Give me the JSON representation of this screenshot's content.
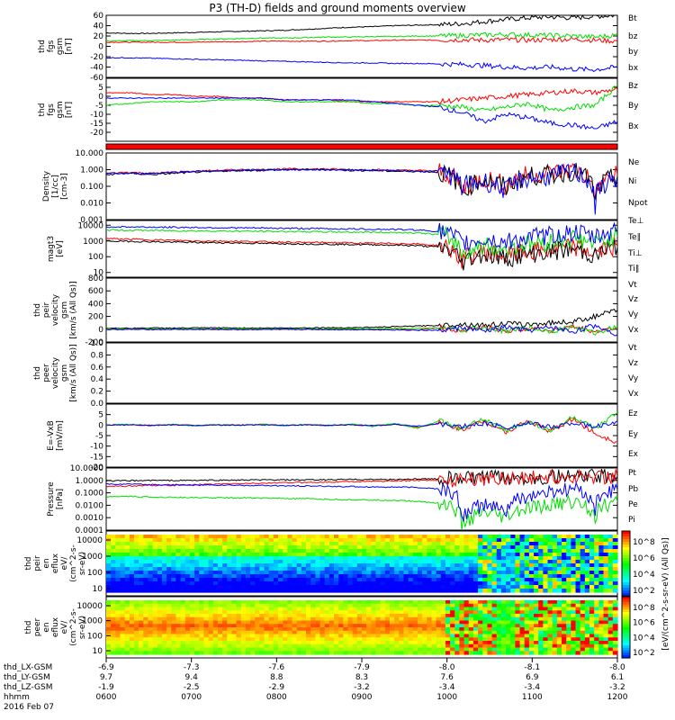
{
  "title": "P3 (TH-D) fields and ground moments overview",
  "colors": {
    "black": "#000000",
    "red": "#ff0000",
    "green": "#00dd00",
    "blue": "#0000ff"
  },
  "chart_data": [
    {
      "type": "line",
      "id": "fgs_gsm",
      "ylabel": [
        "thd",
        "fgs",
        "gsm",
        "[nT]"
      ],
      "ylim": [
        -60,
        60
      ],
      "yticks": [
        "60",
        "40",
        "20",
        "0",
        "-20",
        "-40",
        "-60"
      ],
      "ytick_vals": [
        60,
        40,
        20,
        0,
        -20,
        -40,
        -60
      ],
      "legend": [
        "Bt",
        "bz",
        "by",
        "bx"
      ],
      "series": [
        {
          "name": "Bt",
          "color": "black",
          "values": [
            26,
            25,
            25,
            26,
            27,
            28,
            29,
            30,
            31,
            33,
            35,
            37,
            38,
            40,
            41,
            42,
            44,
            48,
            52,
            55,
            57,
            55,
            58,
            60
          ]
        },
        {
          "name": "bz",
          "color": "red",
          "values": [
            8,
            8,
            8,
            8,
            8,
            9,
            9,
            10,
            10,
            10,
            10,
            11,
            11,
            12,
            12,
            12,
            13,
            12,
            13,
            12,
            13,
            14,
            12,
            10
          ]
        },
        {
          "name": "by",
          "color": "green",
          "values": [
            10,
            11,
            11,
            12,
            13,
            14,
            15,
            16,
            16,
            17,
            18,
            18,
            19,
            19,
            20,
            20,
            21,
            22,
            23,
            22,
            21,
            20,
            18,
            22
          ]
        },
        {
          "name": "bx",
          "color": "blue",
          "values": [
            -22,
            -22,
            -23,
            -24,
            -25,
            -26,
            -27,
            -28,
            -29,
            -30,
            -31,
            -32,
            -32,
            -33,
            -33,
            -34,
            -35,
            -37,
            -40,
            -42,
            -40,
            -44,
            -45,
            -40
          ]
        }
      ]
    },
    {
      "type": "line",
      "id": "fgs_gse",
      "ylabel": [
        "thd",
        "fgs",
        "gsm",
        "[nT]"
      ],
      "ylim": [
        -25,
        10
      ],
      "yticks": [
        "5",
        "0",
        "-5",
        "-10",
        "-15",
        "-20"
      ],
      "ytick_vals": [
        5,
        0,
        -5,
        -10,
        -15,
        -20
      ],
      "legend": [
        "Bz",
        "By",
        "Bx"
      ],
      "series": [
        {
          "name": "Bz",
          "color": "red",
          "values": [
            2,
            2,
            1,
            1,
            0,
            0,
            -1,
            -1,
            -2,
            -2,
            -2,
            -3,
            -3,
            -3,
            -3,
            -3,
            -2,
            -1,
            0,
            1,
            2,
            3,
            2,
            4
          ]
        },
        {
          "name": "By",
          "color": "green",
          "values": [
            -5,
            -4,
            -3,
            -3,
            -3,
            -2,
            -2,
            -2,
            -3,
            -3,
            -3,
            -3,
            -4,
            -4,
            -5,
            -5,
            -6,
            -8,
            -6,
            -4,
            -8,
            -6,
            -5,
            6
          ]
        },
        {
          "name": "Bx",
          "color": "blue",
          "values": [
            -1,
            -1,
            -1,
            -1,
            -1,
            -1,
            -1,
            -1,
            -2,
            -2,
            -2,
            -2,
            -3,
            -4,
            -5,
            -6,
            -9,
            -14,
            -10,
            -12,
            -15,
            -16,
            -18,
            -14
          ]
        }
      ]
    },
    {
      "type": "line",
      "id": "density",
      "log": true,
      "ylabel": [
        "Density",
        "[1/cc]",
        "[cm-3]"
      ],
      "ylim": [
        0.001,
        10
      ],
      "yticks": [
        "10.000",
        "1.000",
        "0.100",
        "0.010",
        "0.001"
      ],
      "ytick_vals": [
        10,
        1,
        0.1,
        0.01,
        0.001
      ],
      "legend": [
        "Ne",
        "Ni",
        "Npot"
      ],
      "series": [
        {
          "name": "Ne",
          "color": "red",
          "values": [
            0.6,
            0.7,
            0.6,
            0.7,
            0.8,
            0.9,
            1,
            1,
            1.1,
            1.1,
            1.1,
            1,
            1,
            0.9,
            0.9,
            0.8,
            0.05,
            0.3,
            0.1,
            0.5,
            0.6,
            1,
            0.01,
            0.5
          ]
        },
        {
          "name": "Ni",
          "color": "black",
          "values": [
            0.5,
            0.6,
            0.5,
            0.6,
            0.7,
            0.8,
            0.9,
            0.9,
            1,
            1,
            1,
            0.9,
            0.9,
            0.8,
            0.8,
            0.7,
            0.04,
            0.25,
            0.08,
            0.4,
            0.5,
            0.8,
            0.008,
            0.4
          ]
        },
        {
          "name": "Npot",
          "color": "blue",
          "values": [
            0.6,
            0.6,
            0.6,
            0.7,
            0.8,
            0.8,
            0.9,
            1,
            1,
            1,
            1,
            1,
            0.9,
            0.9,
            0.8,
            0.8,
            0.1,
            0.2,
            0.05,
            0.3,
            0.4,
            0.7,
            0.005,
            0.3
          ]
        }
      ]
    },
    {
      "type": "line",
      "id": "magt3",
      "log": true,
      "ylabel": [
        "magt3",
        "[eV]"
      ],
      "ylim": [
        5,
        20000
      ],
      "yticks": [
        "10000",
        "1000",
        "100",
        "10"
      ],
      "ytick_vals": [
        10000,
        1000,
        100,
        10
      ],
      "legend": [
        "Te⊥",
        "Te∥",
        "Ti⊥",
        "Ti∥"
      ],
      "series": [
        {
          "name": "Te⊥",
          "color": "red",
          "values": [
            1400,
            1300,
            1200,
            1100,
            1000,
            1000,
            950,
            900,
            850,
            800,
            800,
            750,
            700,
            700,
            650,
            500,
            60,
            200,
            100,
            200,
            250,
            400,
            150,
            500
          ]
        },
        {
          "name": "Te∥",
          "color": "black",
          "values": [
            1000,
            950,
            900,
            850,
            800,
            780,
            750,
            700,
            680,
            650,
            620,
            600,
            580,
            550,
            500,
            400,
            40,
            150,
            70,
            150,
            200,
            300,
            100,
            400
          ]
        },
        {
          "name": "Ti⊥",
          "color": "green",
          "values": [
            5000,
            4800,
            4700,
            4500,
            4400,
            4300,
            4200,
            4100,
            4000,
            3900,
            3800,
            3700,
            3600,
            3500,
            3300,
            2500,
            150,
            500,
            300,
            700,
            900,
            1500,
            600,
            2000
          ]
        },
        {
          "name": "Ti∥",
          "color": "blue",
          "values": [
            8000,
            7800,
            7600,
            7400,
            7200,
            7000,
            6800,
            6600,
            6400,
            6200,
            6000,
            5800,
            5600,
            5400,
            5000,
            4000,
            600,
            1200,
            800,
            1600,
            2200,
            3500,
            1500,
            5000
          ]
        }
      ]
    },
    {
      "type": "line",
      "id": "peir_velocity",
      "ylabel": [
        "thd",
        "peir",
        "velocity",
        "gsm",
        "[km/s (All Qs)]"
      ],
      "ylim": [
        -200,
        800
      ],
      "yticks": [
        "800",
        "600",
        "400",
        "200",
        "0",
        "-200"
      ],
      "ytick_vals": [
        800,
        600,
        400,
        200,
        0,
        -200
      ],
      "legend": [
        "Vt",
        "Vz",
        "Vy",
        "Vx"
      ],
      "series": [
        {
          "name": "Vt",
          "color": "black",
          "values": [
            20,
            15,
            20,
            18,
            20,
            22,
            20,
            18,
            20,
            22,
            25,
            25,
            30,
            40,
            50,
            60,
            80,
            60,
            90,
            70,
            100,
            120,
            200,
            300
          ]
        },
        {
          "name": "Vz",
          "color": "red",
          "values": [
            0,
            2,
            -2,
            0,
            3,
            -2,
            0,
            2,
            -3,
            0,
            2,
            5,
            -5,
            10,
            -10,
            20,
            -20,
            30,
            -30,
            20,
            -20,
            40,
            -40,
            30
          ]
        },
        {
          "name": "Vy",
          "color": "green",
          "values": [
            5,
            3,
            4,
            2,
            5,
            3,
            6,
            4,
            5,
            3,
            5,
            7,
            5,
            10,
            15,
            20,
            -20,
            30,
            -30,
            20,
            -30,
            40,
            -60,
            50
          ]
        },
        {
          "name": "Vx",
          "color": "blue",
          "values": [
            -5,
            -3,
            -4,
            -2,
            -5,
            -3,
            -6,
            -4,
            -5,
            -3,
            -5,
            -7,
            -5,
            -10,
            -15,
            -20,
            20,
            -30,
            30,
            -20,
            30,
            -40,
            60,
            -80
          ]
        }
      ]
    },
    {
      "type": "line",
      "id": "peer_velocity",
      "ylabel": [
        "thd",
        "peer",
        "velocity",
        "gsm",
        "[km/s (All Qs)]"
      ],
      "ylim": [
        0,
        1
      ],
      "yticks": [
        "1.0",
        "0.8",
        "0.6",
        "0.4",
        "0.2",
        "0.0"
      ],
      "ytick_vals": [
        1,
        0.8,
        0.6,
        0.4,
        0.2,
        0
      ],
      "legend": [
        "Vt",
        "Vz",
        "Vy",
        "Vx"
      ],
      "series": []
    },
    {
      "type": "line",
      "id": "e_field",
      "ylabel": [
        "E=-VxB",
        "[mV/m]"
      ],
      "ylim": [
        -20,
        10
      ],
      "yticks": [
        "5",
        "0",
        "-5",
        "-10",
        "-15",
        "-20"
      ],
      "ytick_vals": [
        5,
        0,
        -5,
        -10,
        -15,
        -20
      ],
      "legend": [
        "Ez",
        "Ey",
        "Ex"
      ],
      "series": [
        {
          "name": "Ez",
          "color": "red",
          "values": [
            0,
            0.3,
            -0.3,
            0.2,
            -0.2,
            0.1,
            0,
            0.3,
            -0.2,
            0.2,
            -0.3,
            0.3,
            -0.5,
            0.5,
            -1,
            1,
            -2,
            2,
            -3,
            2,
            -3,
            3,
            -4,
            -8
          ]
        },
        {
          "name": "Ey",
          "color": "green",
          "values": [
            0,
            0.4,
            -0.2,
            0.3,
            -0.4,
            0.2,
            0,
            0.4,
            -0.3,
            0.3,
            -0.2,
            0.5,
            -0.6,
            0.8,
            -1.5,
            2,
            -2,
            3,
            -3,
            2,
            -3,
            4,
            -2,
            6
          ]
        },
        {
          "name": "Ex",
          "color": "blue",
          "values": [
            0,
            0.1,
            -0.1,
            0.1,
            -0.1,
            0,
            0,
            0.1,
            -0.1,
            0.1,
            -0.1,
            0.2,
            -0.2,
            0.3,
            -0.5,
            0.6,
            -0.8,
            1,
            -1,
            0.8,
            -1,
            1.2,
            -1,
            2
          ]
        }
      ]
    },
    {
      "type": "line",
      "id": "pressure",
      "log": true,
      "ylabel": [
        "Pressure",
        "[nPa]"
      ],
      "ylim": [
        0.0001,
        10
      ],
      "yticks": [
        "10.0000",
        "1.0000",
        "0.1000",
        "0.0100",
        "0.0010",
        "0.0001"
      ],
      "ytick_vals": [
        10,
        1,
        0.1,
        0.01,
        0.001,
        0.0001
      ],
      "legend": [
        "Pt",
        "Pb",
        "Pe",
        "Pi"
      ],
      "series": [
        {
          "name": "Pt",
          "color": "black",
          "values": [
            0.9,
            0.95,
            1,
            1,
            1,
            1.05,
            1.05,
            1.1,
            1.1,
            1.1,
            1.15,
            1.2,
            1.2,
            1.2,
            1.3,
            1.3,
            1.5,
            1.6,
            1.7,
            1.8,
            1.9,
            2,
            2.1,
            2.2
          ]
        },
        {
          "name": "Pb",
          "color": "red",
          "values": [
            0.35,
            0.35,
            0.4,
            0.4,
            0.45,
            0.5,
            0.55,
            0.6,
            0.65,
            0.7,
            0.75,
            0.8,
            0.85,
            0.9,
            1,
            1.05,
            1.2,
            1.4,
            1.6,
            1.7,
            1.8,
            1.9,
            2,
            2.1
          ]
        },
        {
          "name": "Pe",
          "color": "green",
          "values": [
            0.05,
            0.05,
            0.045,
            0.045,
            0.04,
            0.04,
            0.04,
            0.038,
            0.035,
            0.033,
            0.03,
            0.028,
            0.026,
            0.025,
            0.02,
            0.015,
            0.0002,
            0.002,
            0.0008,
            0.005,
            0.01,
            0.02,
            0.001,
            0.02
          ]
        },
        {
          "name": "Pi",
          "color": "blue",
          "values": [
            0.5,
            0.5,
            0.45,
            0.45,
            0.42,
            0.42,
            0.4,
            0.38,
            0.36,
            0.35,
            0.33,
            0.32,
            0.3,
            0.29,
            0.27,
            0.2,
            0.0006,
            0.01,
            0.003,
            0.05,
            0.1,
            0.2,
            0.002,
            0.2
          ]
        }
      ]
    },
    {
      "type": "heatmap",
      "id": "peir_eflux",
      "ylabel": [
        "thd",
        "peir",
        "en",
        "eflux",
        "eV/",
        "(cm^2-s-",
        "sr-eV)"
      ],
      "yticks": [
        "10000",
        "1000",
        "100",
        "10"
      ],
      "colorbar_ticks": [
        "10^8",
        "10^6",
        "10^4",
        "10^2"
      ]
    },
    {
      "type": "heatmap",
      "id": "peer_eflux",
      "ylabel": [
        "thd",
        "peer",
        "en",
        "eflux",
        "eV/",
        "(cm^2-s-",
        "sr-eV)"
      ],
      "yticks": [
        "10000",
        "1000",
        "100",
        "10"
      ],
      "colorbar_ticks": [
        "10^8",
        "10^6",
        "10^4",
        "10^2"
      ]
    }
  ],
  "colorbar_label": "[eV/(cm^2-s-sr-eV) (All Qs)]",
  "x_axis": {
    "row_labels": [
      "thd_LX-GSM",
      "thd_LY-GSM",
      "thd_LZ-GSM",
      "hhmm",
      "2016 Feb 07"
    ],
    "lx": [
      "-6.9",
      "-7.3",
      "-7.6",
      "-7.9",
      "-8.0",
      "-8.1",
      "-8.0"
    ],
    "ly": [
      "9.7",
      "9.4",
      "8.8",
      "8.3",
      "7.6",
      "6.9",
      "6.1"
    ],
    "lz": [
      "-1.9",
      "-2.5",
      "-2.9",
      "-3.2",
      "-3.4",
      "-3.4",
      "-3.2"
    ],
    "hhmm": [
      "0600",
      "0700",
      "0800",
      "0900",
      "1000",
      "1100",
      "1200"
    ]
  }
}
